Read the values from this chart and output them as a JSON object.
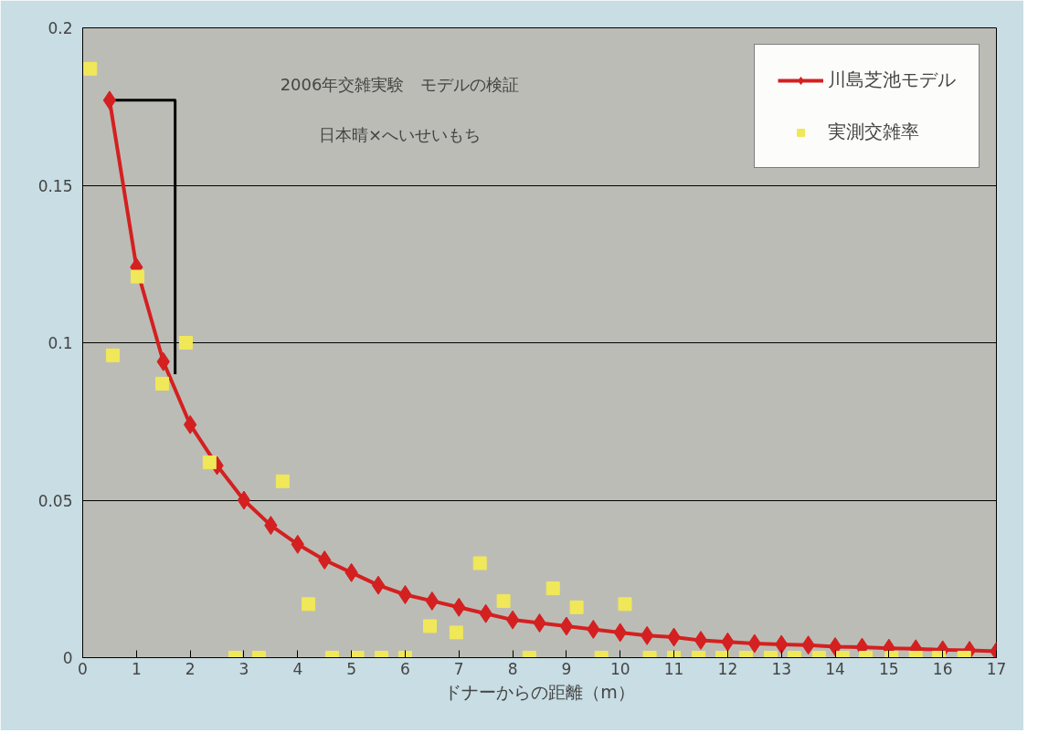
{
  "chart_data": {
    "type": "line",
    "title": "2006年交雑実験　モデルの検証",
    "subtitle": "日本晴×へいせいもち",
    "xlabel": "ドナーからの距離（m）",
    "xlim": [
      0,
      17
    ],
    "xticks": [
      0,
      1,
      2,
      3,
      4,
      5,
      6,
      7,
      8,
      9,
      10,
      11,
      12,
      13,
      14,
      15,
      16,
      17
    ],
    "ylim": [
      0,
      0.2
    ],
    "yticks": [
      0,
      0.05,
      0.1,
      0.15,
      0.2
    ],
    "grid": "y",
    "legend": "top right",
    "series": [
      {
        "color": "#000000",
        "marker": "none",
        "line_style": "solid",
        "x": [
          0.55,
          1.72,
          1.72
        ],
        "values": [
          0.177,
          0.177,
          0.09
        ]
      },
      {
        "name": "川島芝池モデル",
        "marker": "diamond",
        "line_style": "solid",
        "color": "#d42020",
        "x": [
          0.5,
          1,
          1.5,
          2,
          2.5,
          3,
          3.5,
          4,
          4.5,
          5,
          5.5,
          6,
          6.5,
          7,
          7.5,
          8,
          8.5,
          9,
          9.5,
          10,
          10.5,
          11,
          11.5,
          12,
          12.5,
          13,
          13.5,
          14,
          14.5,
          15,
          15.5,
          16,
          16.5,
          17
        ],
        "values": [
          0.177,
          0.124,
          0.094,
          0.074,
          0.061,
          0.05,
          0.042,
          0.036,
          0.031,
          0.027,
          0.023,
          0.02,
          0.018,
          0.016,
          0.014,
          0.012,
          0.011,
          0.01,
          0.009,
          0.008,
          0.007,
          0.0065,
          0.0055,
          0.005,
          0.0045,
          0.0042,
          0.004,
          0.0035,
          0.0033,
          0.003,
          0.0028,
          0.0025,
          0.0023,
          0.002
        ]
      },
      {
        "name": "実測交雑率",
        "type": "scatter",
        "marker": "square",
        "color": "#f0e858",
        "x": [
          0.14,
          0.56,
          1.02,
          1.48,
          1.92,
          2.36,
          2.84,
          3.28,
          3.72,
          4.2,
          4.64,
          5.11,
          5.56,
          6.0,
          6.46,
          6.95,
          7.39,
          7.83,
          8.31,
          8.75,
          9.19,
          9.65,
          10.09,
          10.55,
          11.0,
          11.46,
          11.9,
          12.34,
          12.8,
          13.24,
          13.7,
          14.14,
          14.57,
          15.05,
          15.5,
          15.93,
          16.4
        ],
        "values": [
          0.187,
          0.096,
          0.121,
          0.087,
          0.1,
          0.062,
          0,
          0,
          0.056,
          0.017,
          0,
          0,
          0,
          0,
          0.01,
          0.008,
          0.03,
          0.018,
          0,
          0.022,
          0.016,
          0,
          0.017,
          0,
          0,
          0,
          0,
          0,
          0,
          0,
          0,
          0,
          0,
          0,
          0,
          0,
          0
        ]
      }
    ]
  }
}
